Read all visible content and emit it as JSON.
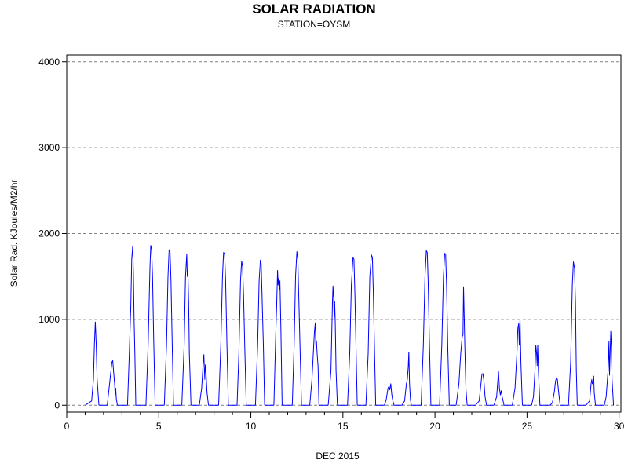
{
  "chart_data": {
    "type": "line",
    "title": "SOLAR RADIATION",
    "subtitle": "STATION=OYSM",
    "xlabel": "DEC 2015",
    "ylabel": "Solar Rad. KJoules/M2/hr",
    "xlim": [
      0,
      30.1
    ],
    "ylim": [
      -80,
      4080
    ],
    "x_ticks": [
      0,
      5,
      10,
      15,
      20,
      25,
      30
    ],
    "y_ticks": [
      0,
      1000,
      2000,
      3000,
      4000
    ],
    "grid": "horizontal dashed",
    "line_color": "#0000ff",
    "daily_series": [
      {
        "day": 1,
        "x": [
          1.0,
          1.35,
          1.45,
          1.5,
          1.55,
          1.6,
          1.65,
          1.75
        ],
        "y": [
          0,
          50,
          300,
          700,
          970,
          720,
          300,
          0
        ]
      },
      {
        "day": 2,
        "x": [
          2.2,
          2.45,
          2.5,
          2.55,
          2.6,
          2.63,
          2.66,
          2.69,
          2.75
        ],
        "y": [
          0,
          500,
          520,
          380,
          250,
          120,
          200,
          80,
          0
        ]
      },
      {
        "day": 3,
        "x": [
          3.3,
          3.4,
          3.48,
          3.53,
          3.58,
          3.62,
          3.66,
          3.7,
          3.75
        ],
        "y": [
          0,
          600,
          1150,
          1700,
          1850,
          1550,
          1000,
          600,
          0
        ]
      },
      {
        "day": 4,
        "x": [
          4.3,
          4.42,
          4.52,
          4.56,
          4.61,
          4.66,
          4.72,
          4.8
        ],
        "y": [
          0,
          700,
          1600,
          1860,
          1820,
          1500,
          800,
          0
        ]
      },
      {
        "day": 5,
        "x": [
          5.3,
          5.42,
          5.5,
          5.56,
          5.61,
          5.66,
          5.73,
          5.8
        ],
        "y": [
          0,
          700,
          1500,
          1810,
          1790,
          1450,
          700,
          0
        ]
      },
      {
        "day": 6,
        "x": [
          6.25,
          6.38,
          6.45,
          6.52,
          6.55,
          6.58,
          6.62,
          6.66,
          6.75
        ],
        "y": [
          0,
          700,
          1500,
          1760,
          1500,
          1570,
          1200,
          600,
          0
        ]
      },
      {
        "day": 7,
        "x": [
          7.2,
          7.33,
          7.42,
          7.45,
          7.48,
          7.5,
          7.53,
          7.56,
          7.62,
          7.7
        ],
        "y": [
          0,
          200,
          520,
          590,
          400,
          300,
          470,
          400,
          150,
          0
        ]
      },
      {
        "day": 8,
        "x": [
          8.25,
          8.37,
          8.46,
          8.52,
          8.58,
          8.63,
          8.7,
          8.78
        ],
        "y": [
          0,
          700,
          1500,
          1780,
          1760,
          1450,
          700,
          0
        ]
      },
      {
        "day": 9,
        "x": [
          9.25,
          9.35,
          9.44,
          9.5,
          9.55,
          9.6,
          9.68,
          9.75
        ],
        "y": [
          0,
          600,
          1450,
          1680,
          1620,
          1300,
          600,
          0
        ]
      },
      {
        "day": 10,
        "x": [
          10.25,
          10.37,
          10.45,
          10.52,
          10.56,
          10.6,
          10.68,
          10.75
        ],
        "y": [
          0,
          700,
          1450,
          1690,
          1650,
          1350,
          700,
          0
        ]
      },
      {
        "day": 11,
        "x": [
          11.25,
          11.35,
          11.4,
          11.45,
          11.48,
          11.52,
          11.55,
          11.58,
          11.63,
          11.7
        ],
        "y": [
          0,
          800,
          1150,
          1570,
          1400,
          1480,
          1350,
          1450,
          900,
          0
        ]
      },
      {
        "day": 12,
        "x": [
          12.25,
          12.35,
          12.43,
          12.5,
          12.55,
          12.6,
          12.68,
          12.75
        ],
        "y": [
          0,
          700,
          1500,
          1790,
          1700,
          1300,
          600,
          0
        ]
      },
      {
        "day": 13,
        "x": [
          13.2,
          13.32,
          13.45,
          13.5,
          13.53,
          13.56,
          13.6,
          13.65,
          13.7
        ],
        "y": [
          0,
          300,
          850,
          960,
          700,
          750,
          600,
          450,
          0
        ]
      },
      {
        "day": 14,
        "x": [
          14.2,
          14.35,
          14.43,
          14.46,
          14.5,
          14.52,
          14.55,
          14.58,
          14.63,
          14.7
        ],
        "y": [
          0,
          400,
          1200,
          1390,
          1250,
          1000,
          1210,
          1000,
          400,
          0
        ]
      },
      {
        "day": 15,
        "x": [
          15.25,
          15.37,
          15.46,
          15.55,
          15.6,
          15.65,
          15.72,
          15.78
        ],
        "y": [
          0,
          600,
          1400,
          1720,
          1700,
          1300,
          600,
          0
        ]
      },
      {
        "day": 16,
        "x": [
          16.25,
          16.37,
          16.46,
          16.55,
          16.6,
          16.65,
          16.72,
          16.78
        ],
        "y": [
          0,
          600,
          1500,
          1750,
          1720,
          1350,
          600,
          0
        ]
      },
      {
        "day": 17,
        "x": [
          17.25,
          17.35,
          17.45,
          17.5,
          17.55,
          17.6,
          17.65,
          17.7,
          17.78
        ],
        "y": [
          0,
          60,
          200,
          220,
          180,
          250,
          130,
          60,
          0
        ]
      },
      {
        "day": 18,
        "x": [
          18.2,
          18.35,
          18.45,
          18.5,
          18.55,
          18.58,
          18.62,
          18.67,
          18.72
        ],
        "y": [
          0,
          50,
          250,
          300,
          450,
          620,
          250,
          60,
          0
        ]
      },
      {
        "day": 19,
        "x": [
          19.25,
          19.37,
          19.46,
          19.53,
          19.58,
          19.63,
          19.7,
          19.78
        ],
        "y": [
          0,
          700,
          1500,
          1800,
          1780,
          1450,
          700,
          0
        ]
      },
      {
        "day": 20,
        "x": [
          20.25,
          20.37,
          20.46,
          20.53,
          20.58,
          20.63,
          20.7,
          20.78
        ],
        "y": [
          0,
          700,
          1500,
          1770,
          1760,
          1400,
          650,
          0
        ]
      },
      {
        "day": 21,
        "x": [
          21.15,
          21.3,
          21.4,
          21.48,
          21.52,
          21.55,
          21.58,
          21.62,
          21.68,
          21.75
        ],
        "y": [
          0,
          250,
          600,
          800,
          820,
          1380,
          1100,
          700,
          200,
          0
        ]
      },
      {
        "day": 22,
        "x": [
          22.2,
          22.4,
          22.5,
          22.55,
          22.6,
          22.65,
          22.72,
          22.8
        ],
        "y": [
          0,
          50,
          250,
          360,
          370,
          300,
          100,
          0
        ]
      },
      {
        "day": 23,
        "x": [
          23.2,
          23.35,
          23.42,
          23.45,
          23.5,
          23.55,
          23.6,
          23.65,
          23.75
        ],
        "y": [
          0,
          100,
          300,
          400,
          200,
          120,
          170,
          100,
          0
        ]
      },
      {
        "day": 24,
        "x": [
          24.2,
          24.35,
          24.45,
          24.5,
          24.55,
          24.58,
          24.62,
          24.67,
          24.75
        ],
        "y": [
          0,
          200,
          600,
          900,
          950,
          700,
          1010,
          500,
          0
        ]
      },
      {
        "day": 25,
        "x": [
          25.25,
          25.35,
          25.43,
          25.48,
          25.52,
          25.55,
          25.58,
          25.62,
          25.7
        ],
        "y": [
          0,
          100,
          400,
          700,
          600,
          460,
          700,
          400,
          0
        ]
      },
      {
        "day": 26,
        "x": [
          26.25,
          26.38,
          26.48,
          26.55,
          26.6,
          26.65,
          26.72,
          26.8
        ],
        "y": [
          0,
          30,
          150,
          280,
          320,
          300,
          150,
          0
        ]
      },
      {
        "day": 27,
        "x": [
          27.25,
          27.37,
          27.46,
          27.52,
          27.58,
          27.63,
          27.68,
          27.73
        ],
        "y": [
          0,
          500,
          1400,
          1670,
          1600,
          1200,
          400,
          0
        ]
      },
      {
        "day": 28,
        "x": [
          28.2,
          28.4,
          28.48,
          28.52,
          28.55,
          28.58,
          28.62,
          28.65,
          28.72
        ],
        "y": [
          0,
          50,
          250,
          300,
          250,
          260,
          340,
          150,
          0
        ]
      },
      {
        "day": 29,
        "x": [
          29.2,
          29.3,
          29.4,
          29.45,
          29.48,
          29.5,
          29.55,
          29.58,
          29.62,
          29.7
        ],
        "y": [
          0,
          100,
          400,
          740,
          350,
          500,
          860,
          700,
          300,
          0
        ]
      }
    ]
  }
}
